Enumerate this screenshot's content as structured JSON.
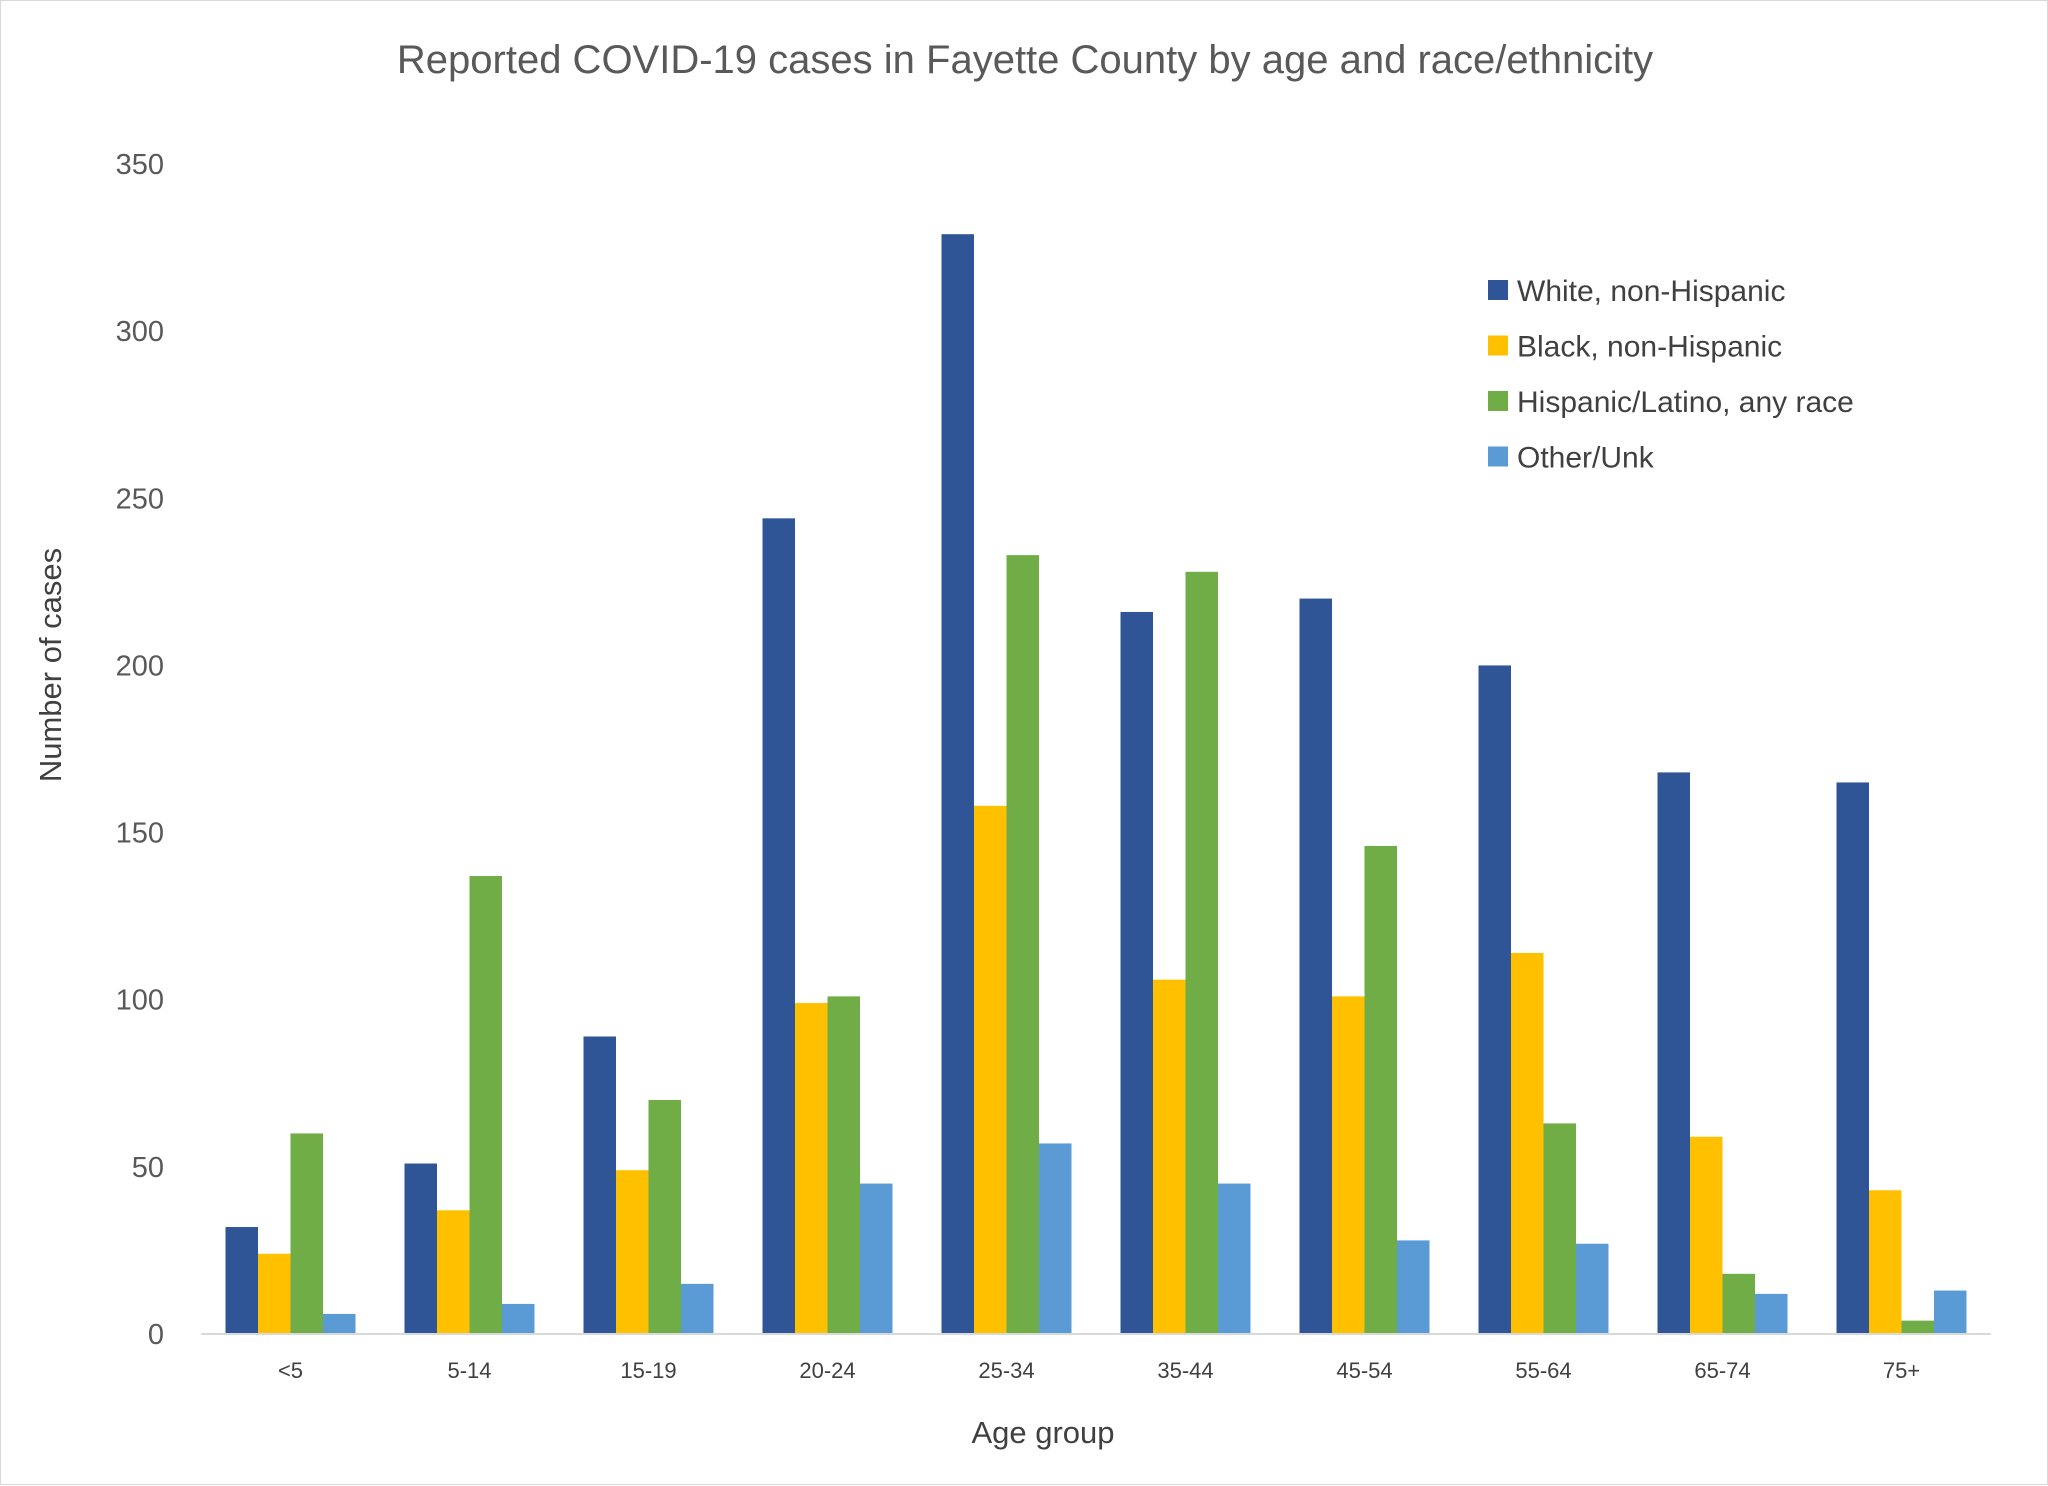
{
  "chart_data": {
    "type": "bar",
    "title": "Reported COVID-19 cases in Fayette County by age and race/ethnicity",
    "xlabel": "Age group",
    "ylabel": "Number of cases",
    "ylim": [
      0,
      350
    ],
    "yticks": [
      0,
      50,
      100,
      150,
      200,
      250,
      300,
      350
    ],
    "grid": false,
    "legend_position": "top-right",
    "categories": [
      "<5",
      "5-14",
      "15-19",
      "20-24",
      "25-34",
      "35-44",
      "45-54",
      "55-64",
      "65-74",
      "75+"
    ],
    "series": [
      {
        "name": "White, non-Hispanic",
        "color": "#2F5597",
        "values": [
          32,
          51,
          89,
          244,
          329,
          216,
          220,
          200,
          168,
          165
        ]
      },
      {
        "name": "Black, non-Hispanic",
        "color": "#FFC000",
        "values": [
          24,
          37,
          49,
          99,
          158,
          106,
          101,
          114,
          59,
          43
        ]
      },
      {
        "name": "Hispanic/Latino, any race",
        "color": "#70AD47",
        "values": [
          60,
          137,
          70,
          101,
          233,
          228,
          146,
          63,
          18,
          4
        ]
      },
      {
        "name": "Other/Unk",
        "color": "#5B9BD5",
        "values": [
          6,
          9,
          15,
          45,
          57,
          45,
          28,
          27,
          12,
          13
        ]
      }
    ]
  }
}
